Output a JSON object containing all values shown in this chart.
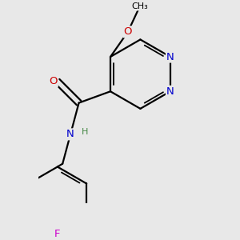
{
  "background_color": "#e8e8e8",
  "bond_color": "#000000",
  "bond_width": 1.6,
  "atom_colors": {
    "N": "#0000cc",
    "O": "#cc0000",
    "F": "#cc00cc",
    "H": "#448844"
  },
  "font_size": 9.5
}
